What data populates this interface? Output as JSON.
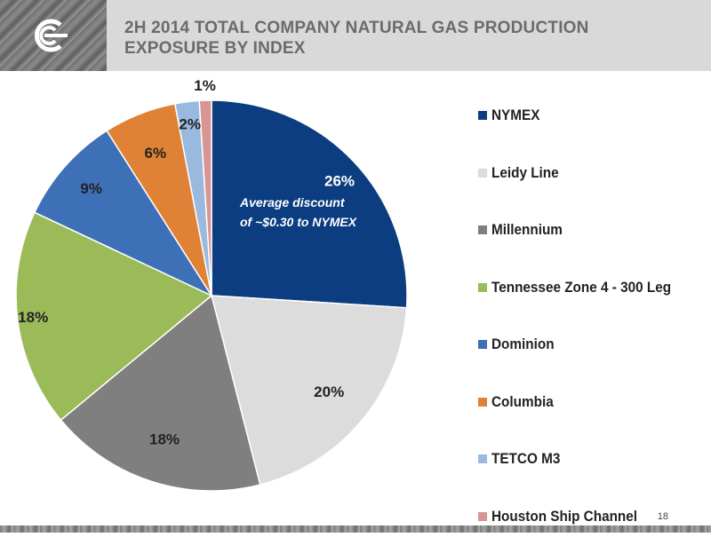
{
  "header": {
    "title_line1": "2H 2014 TOTAL COMPANY NATURAL GAS PRODUCTION",
    "title_line2": "EXPOSURE BY INDEX"
  },
  "footer": {
    "page_number": "18"
  },
  "chart_data": {
    "type": "pie",
    "title": "",
    "slices": [
      {
        "label": "NYMEX",
        "value": 26,
        "display": "26%",
        "color": "#0b3d80"
      },
      {
        "label": "Leidy Line",
        "value": 20,
        "display": "20%",
        "color": "#dcdcdc"
      },
      {
        "label": "Millennium",
        "value": 18,
        "display": "18%",
        "color": "#7f7f7f"
      },
      {
        "label": "Tennessee Zone 4 - 300 Leg",
        "value": 18,
        "display": "18%",
        "color": "#9bbb59"
      },
      {
        "label": "Dominion",
        "value": 9,
        "display": "9%",
        "color": "#3d70b7"
      },
      {
        "label": "Columbia",
        "value": 6,
        "display": "6%",
        "color": "#df8236"
      },
      {
        "label": "TETCO M3",
        "value": 2,
        "display": "2%",
        "color": "#99b9df"
      },
      {
        "label": "Houston Ship Channel",
        "value": 1,
        "display": "1%",
        "color": "#d99594"
      }
    ],
    "annotation": {
      "line1": "Average discount",
      "line2": "of ~$0.30 to NYMEX"
    },
    "legend_placement": "right"
  }
}
